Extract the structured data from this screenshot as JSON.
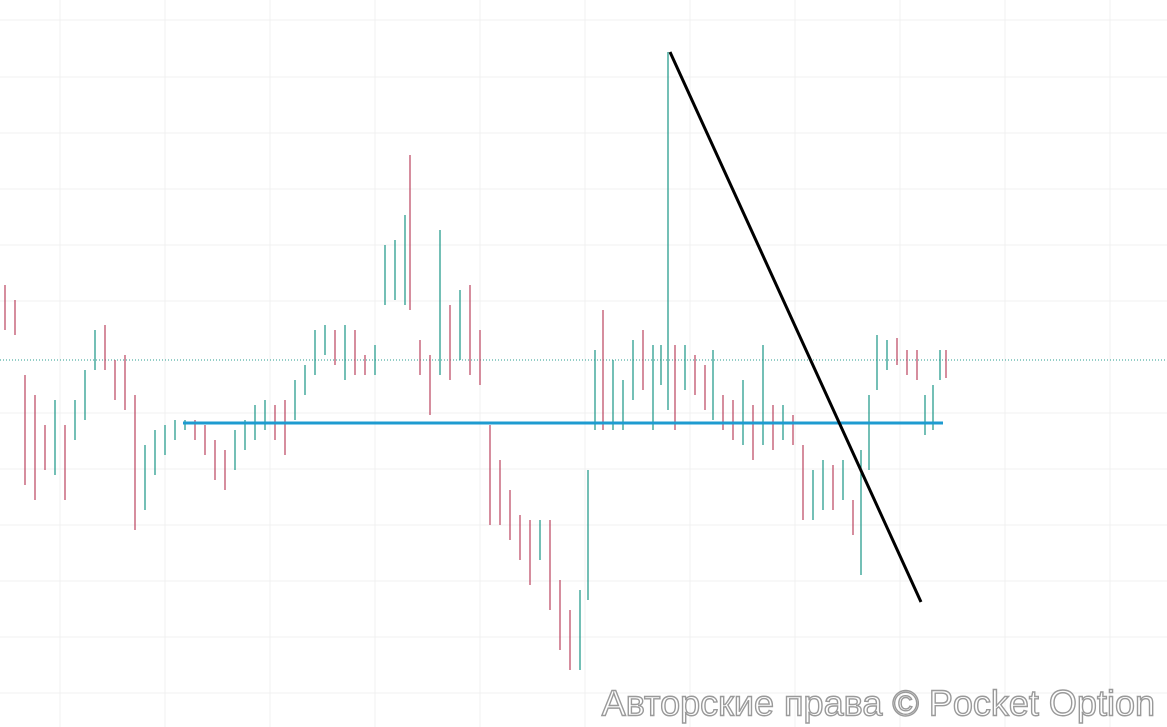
{
  "watermark": "Авторские права © Pocket Option"
}
